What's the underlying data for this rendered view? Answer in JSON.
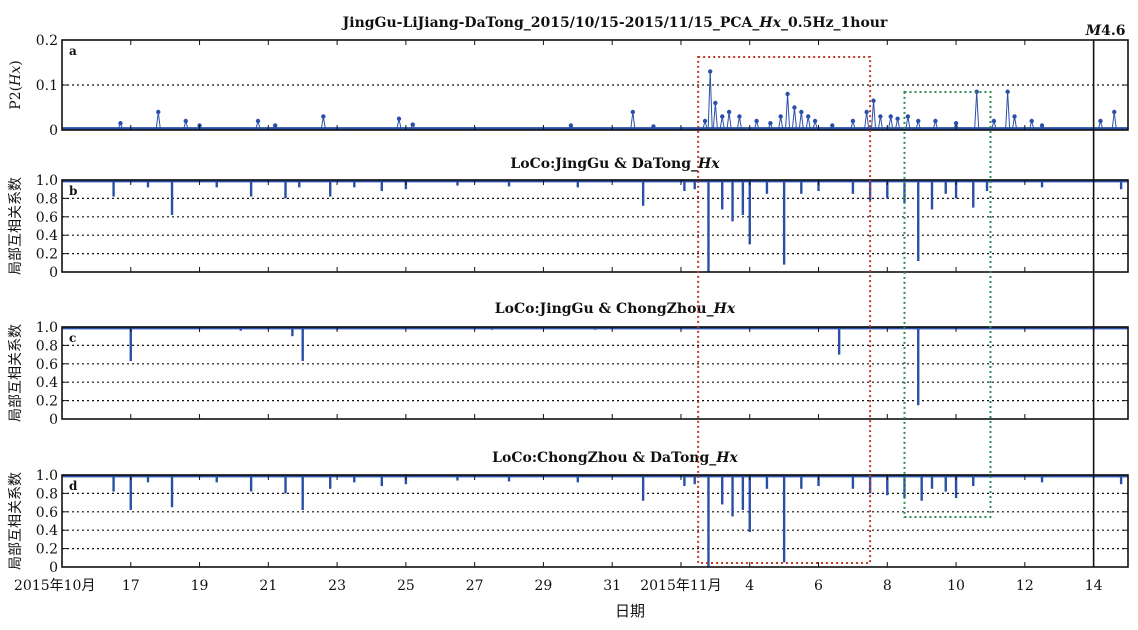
{
  "chart_data": [
    {
      "type": "line",
      "panel": "a",
      "title": "JingGu-LiJiang-DaTong_2015/10/15-2015/11/15_PCA_Hx_0.5Hz_1hour",
      "ylabel": "P2(Hx)",
      "ylim": [
        0,
        0.2
      ],
      "yticks": [
        "0",
        "0.1",
        "0.2"
      ],
      "marker": "dot",
      "spikes": [
        {
          "x": 1.7,
          "y": 0.015
        },
        {
          "x": 2.8,
          "y": 0.04
        },
        {
          "x": 3.6,
          "y": 0.02
        },
        {
          "x": 4.0,
          "y": 0.01
        },
        {
          "x": 5.7,
          "y": 0.02
        },
        {
          "x": 6.2,
          "y": 0.01
        },
        {
          "x": 7.6,
          "y": 0.03
        },
        {
          "x": 9.8,
          "y": 0.025
        },
        {
          "x": 10.2,
          "y": 0.012
        },
        {
          "x": 14.8,
          "y": 0.01
        },
        {
          "x": 16.6,
          "y": 0.04
        },
        {
          "x": 17.2,
          "y": 0.008
        },
        {
          "x": 18.7,
          "y": 0.02
        },
        {
          "x": 18.85,
          "y": 0.13
        },
        {
          "x": 19.0,
          "y": 0.06
        },
        {
          "x": 19.2,
          "y": 0.03
        },
        {
          "x": 19.4,
          "y": 0.04
        },
        {
          "x": 19.7,
          "y": 0.03
        },
        {
          "x": 20.2,
          "y": 0.02
        },
        {
          "x": 20.6,
          "y": 0.015
        },
        {
          "x": 20.9,
          "y": 0.03
        },
        {
          "x": 21.1,
          "y": 0.08
        },
        {
          "x": 21.3,
          "y": 0.05
        },
        {
          "x": 21.5,
          "y": 0.04
        },
        {
          "x": 21.7,
          "y": 0.03
        },
        {
          "x": 21.9,
          "y": 0.02
        },
        {
          "x": 22.4,
          "y": 0.01
        },
        {
          "x": 23.0,
          "y": 0.02
        },
        {
          "x": 23.4,
          "y": 0.04
        },
        {
          "x": 23.6,
          "y": 0.065
        },
        {
          "x": 23.8,
          "y": 0.03
        },
        {
          "x": 24.1,
          "y": 0.03
        },
        {
          "x": 24.3,
          "y": 0.025
        },
        {
          "x": 24.6,
          "y": 0.03
        },
        {
          "x": 24.9,
          "y": 0.02
        },
        {
          "x": 25.4,
          "y": 0.02
        },
        {
          "x": 26.0,
          "y": 0.015
        },
        {
          "x": 26.6,
          "y": 0.085
        },
        {
          "x": 27.1,
          "y": 0.02
        },
        {
          "x": 27.5,
          "y": 0.085
        },
        {
          "x": 27.7,
          "y": 0.03
        },
        {
          "x": 28.2,
          "y": 0.02
        },
        {
          "x": 28.5,
          "y": 0.01
        },
        {
          "x": 30.2,
          "y": 0.02
        },
        {
          "x": 30.6,
          "y": 0.04
        }
      ]
    },
    {
      "type": "bar",
      "panel": "b",
      "title": "LoCo:JingGu & DaTong_Hx",
      "ylabel": "局部互相关系数",
      "ylim": [
        0,
        1
      ],
      "yticks": [
        "0",
        "0.2",
        "0.4",
        "0.6",
        "0.8",
        "1.0"
      ],
      "baseline": 0.99,
      "dips": [
        {
          "x": 1.5,
          "y": 0.82
        },
        {
          "x": 2.5,
          "y": 0.92
        },
        {
          "x": 3.2,
          "y": 0.62
        },
        {
          "x": 4.5,
          "y": 0.92
        },
        {
          "x": 5.5,
          "y": 0.82
        },
        {
          "x": 6.5,
          "y": 0.8
        },
        {
          "x": 6.9,
          "y": 0.92
        },
        {
          "x": 7.8,
          "y": 0.82
        },
        {
          "x": 8.5,
          "y": 0.92
        },
        {
          "x": 9.3,
          "y": 0.88
        },
        {
          "x": 10.0,
          "y": 0.9
        },
        {
          "x": 11.5,
          "y": 0.94
        },
        {
          "x": 13.0,
          "y": 0.93
        },
        {
          "x": 15.0,
          "y": 0.92
        },
        {
          "x": 16.9,
          "y": 0.72
        },
        {
          "x": 18.1,
          "y": 0.88
        },
        {
          "x": 18.4,
          "y": 0.9
        },
        {
          "x": 18.8,
          "y": 0.0
        },
        {
          "x": 19.2,
          "y": 0.68
        },
        {
          "x": 19.5,
          "y": 0.55
        },
        {
          "x": 19.8,
          "y": 0.62
        },
        {
          "x": 20.0,
          "y": 0.3
        },
        {
          "x": 20.5,
          "y": 0.85
        },
        {
          "x": 21.0,
          "y": 0.08
        },
        {
          "x": 21.5,
          "y": 0.85
        },
        {
          "x": 22.0,
          "y": 0.88
        },
        {
          "x": 23.0,
          "y": 0.85
        },
        {
          "x": 23.5,
          "y": 0.78
        },
        {
          "x": 24.0,
          "y": 0.8
        },
        {
          "x": 24.5,
          "y": 0.75
        },
        {
          "x": 24.9,
          "y": 0.12
        },
        {
          "x": 25.3,
          "y": 0.68
        },
        {
          "x": 25.7,
          "y": 0.85
        },
        {
          "x": 26.0,
          "y": 0.8
        },
        {
          "x": 26.5,
          "y": 0.7
        },
        {
          "x": 26.9,
          "y": 0.88
        },
        {
          "x": 28.5,
          "y": 0.92
        },
        {
          "x": 30.8,
          "y": 0.9
        }
      ]
    },
    {
      "type": "bar",
      "panel": "c",
      "title": "LoCo:JingGu & ChongZhou_Hx",
      "ylabel": "局部互相关系数",
      "ylim": [
        0,
        1
      ],
      "yticks": [
        "0",
        "0.2",
        "0.4",
        "0.6",
        "0.8",
        "1.0"
      ],
      "baseline": 0.99,
      "dips": [
        {
          "x": 2.0,
          "y": 0.63
        },
        {
          "x": 5.2,
          "y": 0.96
        },
        {
          "x": 6.7,
          "y": 0.9
        },
        {
          "x": 7.0,
          "y": 0.63
        },
        {
          "x": 8.0,
          "y": 0.97
        },
        {
          "x": 12.5,
          "y": 0.97
        },
        {
          "x": 15.5,
          "y": 0.97
        },
        {
          "x": 22.6,
          "y": 0.7
        },
        {
          "x": 24.9,
          "y": 0.15
        }
      ]
    },
    {
      "type": "bar",
      "panel": "d",
      "title": "LoCo:ChongZhou & DaTong_Hx",
      "ylabel": "局部互相关系数",
      "ylim": [
        0,
        1
      ],
      "yticks": [
        "0",
        "0.2",
        "0.4",
        "0.6",
        "0.8",
        "1.0"
      ],
      "baseline": 0.99,
      "dips": [
        {
          "x": 1.5,
          "y": 0.82
        },
        {
          "x": 2.0,
          "y": 0.62
        },
        {
          "x": 2.5,
          "y": 0.92
        },
        {
          "x": 3.2,
          "y": 0.65
        },
        {
          "x": 4.5,
          "y": 0.92
        },
        {
          "x": 5.5,
          "y": 0.82
        },
        {
          "x": 6.5,
          "y": 0.8
        },
        {
          "x": 7.0,
          "y": 0.62
        },
        {
          "x": 7.8,
          "y": 0.85
        },
        {
          "x": 8.5,
          "y": 0.92
        },
        {
          "x": 9.3,
          "y": 0.88
        },
        {
          "x": 10.0,
          "y": 0.9
        },
        {
          "x": 11.5,
          "y": 0.94
        },
        {
          "x": 13.0,
          "y": 0.93
        },
        {
          "x": 15.0,
          "y": 0.92
        },
        {
          "x": 16.9,
          "y": 0.72
        },
        {
          "x": 18.1,
          "y": 0.88
        },
        {
          "x": 18.4,
          "y": 0.9
        },
        {
          "x": 18.8,
          "y": 0.0
        },
        {
          "x": 19.2,
          "y": 0.68
        },
        {
          "x": 19.5,
          "y": 0.55
        },
        {
          "x": 19.8,
          "y": 0.62
        },
        {
          "x": 20.0,
          "y": 0.38
        },
        {
          "x": 20.5,
          "y": 0.85
        },
        {
          "x": 21.0,
          "y": 0.05
        },
        {
          "x": 21.5,
          "y": 0.85
        },
        {
          "x": 22.0,
          "y": 0.88
        },
        {
          "x": 23.0,
          "y": 0.85
        },
        {
          "x": 23.5,
          "y": 0.8
        },
        {
          "x": 24.0,
          "y": 0.78
        },
        {
          "x": 24.5,
          "y": 0.75
        },
        {
          "x": 25.0,
          "y": 0.72
        },
        {
          "x": 25.3,
          "y": 0.85
        },
        {
          "x": 25.7,
          "y": 0.82
        },
        {
          "x": 26.0,
          "y": 0.75
        },
        {
          "x": 26.5,
          "y": 0.88
        },
        {
          "x": 28.5,
          "y": 0.92
        },
        {
          "x": 30.8,
          "y": 0.9
        }
      ]
    }
  ],
  "x_axis": {
    "xlabel": "日期",
    "xlim": [
      0,
      31
    ],
    "ticks": [
      {
        "x": 0,
        "label": "2015年10月"
      },
      {
        "x": 2,
        "label": "17"
      },
      {
        "x": 4,
        "label": "19"
      },
      {
        "x": 6,
        "label": "21"
      },
      {
        "x": 8,
        "label": "23"
      },
      {
        "x": 10,
        "label": "25"
      },
      {
        "x": 12,
        "label": "27"
      },
      {
        "x": 14,
        "label": "29"
      },
      {
        "x": 16,
        "label": "31"
      },
      {
        "x": 18,
        "label": "2015年11月"
      },
      {
        "x": 20,
        "label": "4"
      },
      {
        "x": 22,
        "label": "6"
      },
      {
        "x": 24,
        "label": "8"
      },
      {
        "x": 26,
        "label": "10"
      },
      {
        "x": 28,
        "label": "12"
      },
      {
        "x": 30,
        "label": "14"
      }
    ]
  },
  "event": {
    "x": 30,
    "label": "M4.6"
  },
  "highlight_boxes": [
    {
      "x_start": 18.5,
      "x_end": 23.5,
      "color": "#c0392b"
    },
    {
      "x_start": 24.5,
      "x_end": 27.0,
      "color": "#2e8b57"
    }
  ],
  "colors": {
    "series": "#2a4fa8",
    "axes": "#111111",
    "grid": "#111111"
  }
}
